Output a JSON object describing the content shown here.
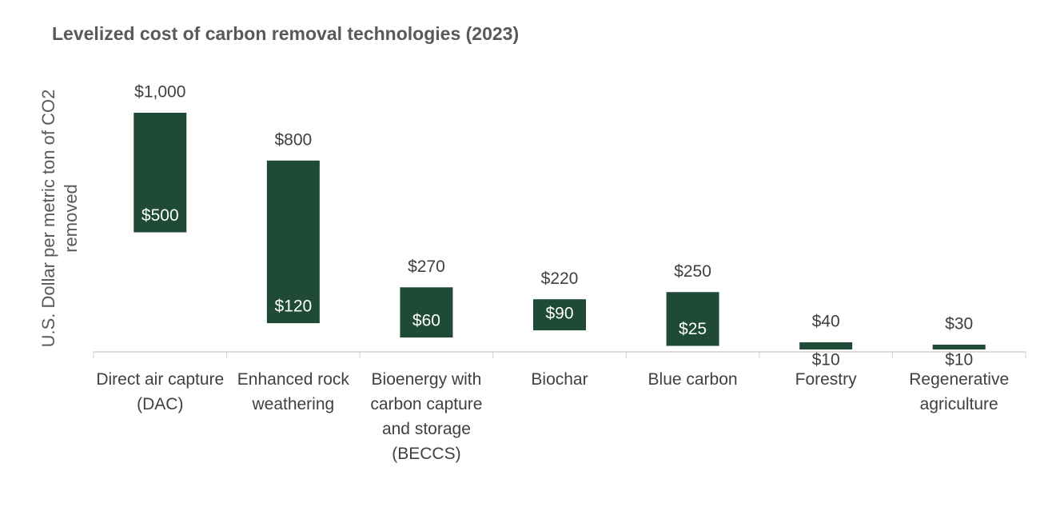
{
  "chart_data": {
    "type": "range-bar",
    "title": "Levelized cost of carbon removal technologies (2023)",
    "y_label": "U.S. Dollar per metric ton of CO2 removed",
    "categories": [
      "Direct air capture (DAC)",
      "Enhanced rock weathering",
      "Bioenergy with carbon capture and storage (BECCS)",
      "Biochar",
      "Blue carbon",
      "Forestry",
      "Regenerative agriculture"
    ],
    "low": [
      500,
      120,
      60,
      90,
      25,
      10,
      10
    ],
    "low_labels": [
      "$500",
      "$120",
      "$60",
      "$90",
      "$25",
      "$10",
      "$10"
    ],
    "high": [
      1000,
      800,
      270,
      220,
      250,
      40,
      30
    ],
    "high_labels": [
      "$1,000",
      "$800",
      "$270",
      "$220",
      "$250",
      "$40",
      "$30"
    ],
    "color": "#1f4a36",
    "ylim": [
      0,
      1000
    ]
  }
}
